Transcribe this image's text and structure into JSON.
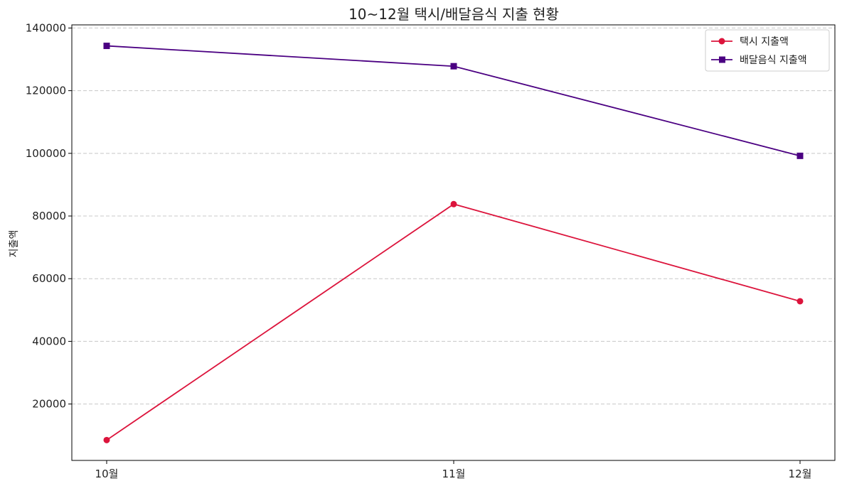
{
  "chart_data": {
    "type": "line",
    "title": "10~12월 택시/배달음식 지출 현황",
    "xlabel": "",
    "ylabel": "지출액",
    "categories": [
      "10월",
      "11월",
      "12월"
    ],
    "ylim": [
      2000,
      141000
    ],
    "yticks": [
      20000,
      40000,
      60000,
      80000,
      100000,
      120000,
      140000
    ],
    "ytick_labels": [
      "20000",
      "40000",
      "60000",
      "80000",
      "100000",
      "120000",
      "140000"
    ],
    "grid": "y-dashed",
    "legend_position": "top-right",
    "series": [
      {
        "name": "택시 지출액",
        "values": [
          8500,
          83800,
          52800
        ],
        "color": "#dc143c",
        "marker": "circle"
      },
      {
        "name": "배달음식 지출액",
        "values": [
          134300,
          127800,
          99200
        ],
        "color": "#4b0082",
        "marker": "square"
      }
    ]
  }
}
